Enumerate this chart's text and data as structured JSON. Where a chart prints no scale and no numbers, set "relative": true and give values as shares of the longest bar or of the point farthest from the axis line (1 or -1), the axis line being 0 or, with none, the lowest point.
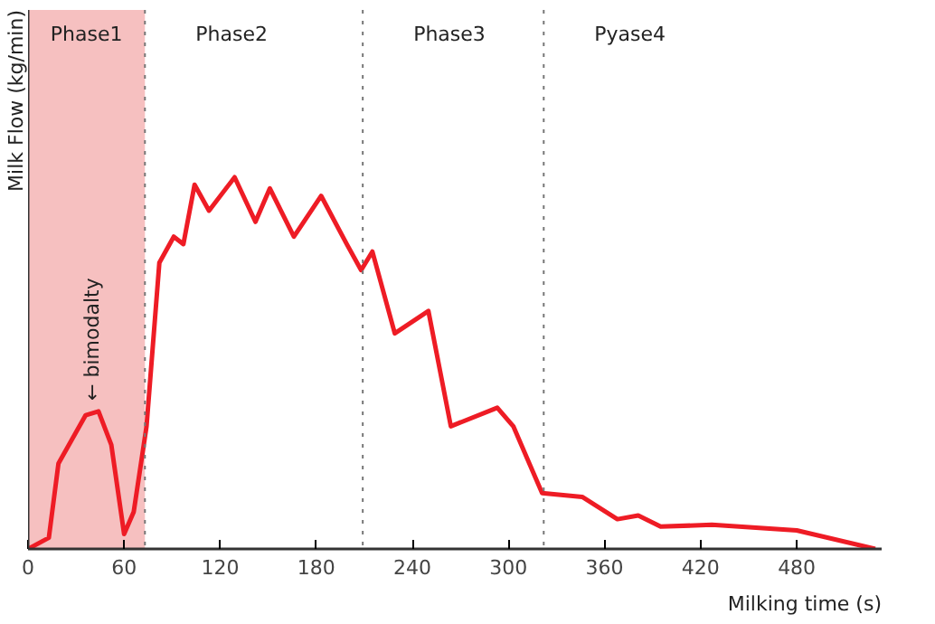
{
  "chart_data": {
    "type": "line",
    "relative": true,
    "xlabel": "Milking time (s)",
    "ylabel": "Milk Flow (kg/min)",
    "x": [
      0,
      13,
      19,
      36,
      44,
      52,
      60,
      66,
      74,
      82,
      91,
      97,
      104,
      113,
      129,
      142,
      151,
      166,
      183,
      199,
      208,
      215,
      229,
      250,
      264,
      293,
      303,
      321,
      346,
      368,
      381,
      395,
      427,
      480,
      529
    ],
    "series": [
      {
        "color": "#ee1c25",
        "values": [
          0,
          0.03,
          0.23,
          0.36,
          0.37,
          0.28,
          0.04,
          0.1,
          0.33,
          0.77,
          0.84,
          0.82,
          0.98,
          0.91,
          1,
          0.88,
          0.97,
          0.84,
          0.95,
          0.82,
          0.75,
          0.8,
          0.58,
          0.64,
          0.33,
          0.38,
          0.33,
          0.15,
          0.14,
          0.08,
          0.09,
          0.06,
          0.065,
          0.05,
          0
        ]
      }
    ],
    "xlim": [
      0,
      533
    ],
    "xticks": [
      0,
      60,
      120,
      180,
      240,
      300,
      360,
      420,
      480
    ],
    "bands": [
      {
        "axis": "x",
        "from": 0,
        "to": 73,
        "label": "Phase1",
        "color": "#f6c0c0"
      }
    ],
    "ref_lines": [
      {
        "axis": "x",
        "value": 73,
        "line_style": "dotted",
        "label": "Phase2"
      },
      {
        "axis": "x",
        "value": 209,
        "line_style": "dotted",
        "label": "Phase3"
      },
      {
        "axis": "x",
        "value": 322,
        "line_style": "dotted",
        "label": "Pyase4"
      }
    ],
    "annotations": [
      {
        "text": "← bimodalty",
        "x": 40,
        "y": 0.37
      }
    ],
    "line_style": "solid"
  }
}
